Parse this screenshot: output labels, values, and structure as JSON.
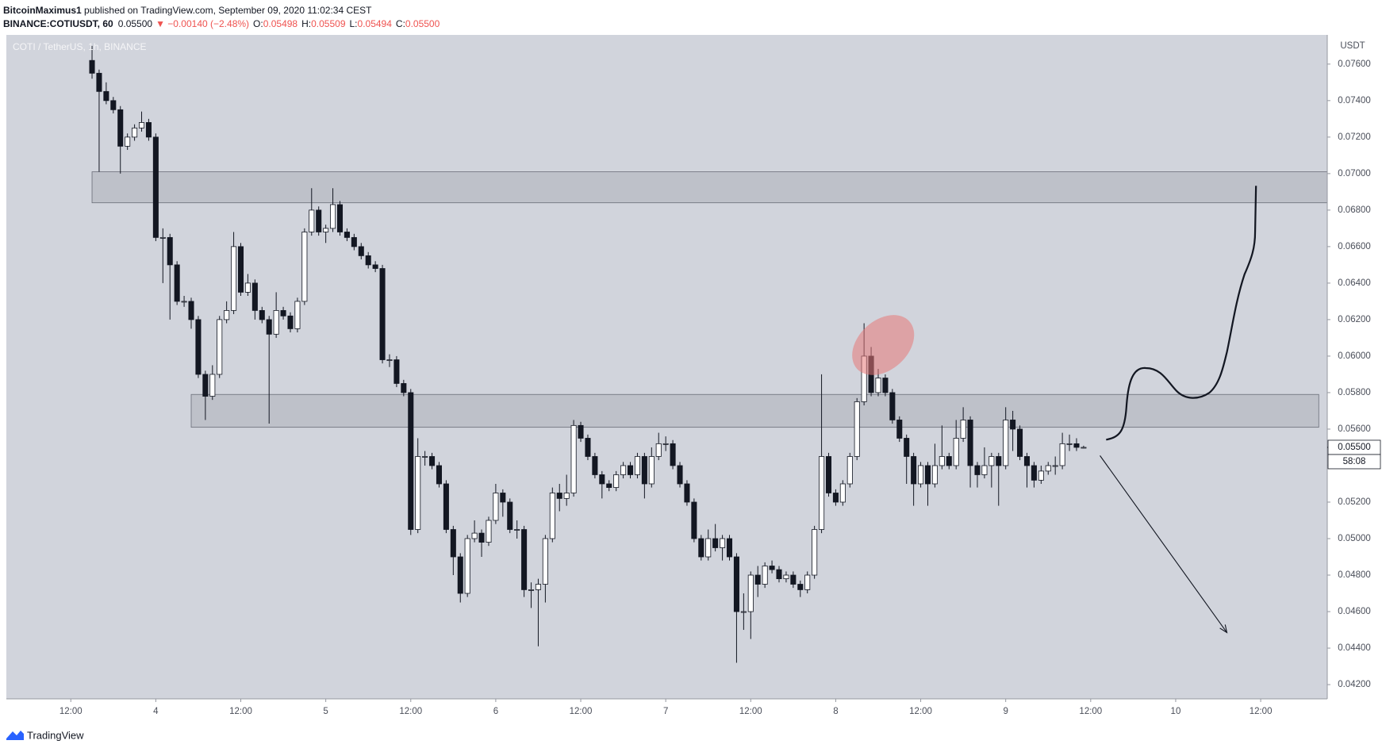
{
  "header": {
    "author": "BitcoinMaximus1",
    "published": " published on TradingView.com, September 09, 2020 11:02:34 CEST",
    "symbol": "BINANCE:COTIUSDT, 60",
    "last": "0.05500",
    "change": "▼ −0.00140 (−2.48%)",
    "ohlc": [
      {
        "label": "O:",
        "value": "0.05498"
      },
      {
        "label": "H:",
        "value": "0.05509"
      },
      {
        "label": "L:",
        "value": "0.05494"
      },
      {
        "label": "C:",
        "value": "0.05500"
      }
    ]
  },
  "chart_data": {
    "type": "candlestick",
    "pane_label": "COTI / TetherUS, 1h, BINANCE",
    "currency": "USDT",
    "price_label": "0.05500",
    "countdown": "58:08",
    "up_color": "#ffffff",
    "down_color": "#131722",
    "border_color": "#131722",
    "xlim": [
      2.9,
      189.4
    ],
    "ylim": [
      0.04122,
      0.0776
    ],
    "xticks": [
      {
        "value": 12,
        "label": "12:00"
      },
      {
        "value": 24,
        "label": "4"
      },
      {
        "value": 36,
        "label": "12:00"
      },
      {
        "value": 48,
        "label": "5"
      },
      {
        "value": 60,
        "label": "12:00"
      },
      {
        "value": 72,
        "label": "6"
      },
      {
        "value": 84,
        "label": "12:00"
      },
      {
        "value": 96,
        "label": "7"
      },
      {
        "value": 108,
        "label": "12:00"
      },
      {
        "value": 120,
        "label": "8"
      },
      {
        "value": 132,
        "label": "12:00"
      },
      {
        "value": 144,
        "label": "9"
      },
      {
        "value": 156,
        "label": "12:00"
      },
      {
        "value": 168,
        "label": "10"
      },
      {
        "value": 180,
        "label": "12:00"
      }
    ],
    "yticks": [
      {
        "value": 0.042,
        "label": "0.04200"
      },
      {
        "value": 0.044,
        "label": "0.04400"
      },
      {
        "value": 0.046,
        "label": "0.04600"
      },
      {
        "value": 0.048,
        "label": "0.04800"
      },
      {
        "value": 0.05,
        "label": "0.05000"
      },
      {
        "value": 0.052,
        "label": "0.05200"
      },
      {
        "value": 0.054,
        "label": "0.05400"
      },
      {
        "value": 0.056,
        "label": "0.05600"
      },
      {
        "value": 0.058,
        "label": "0.05800"
      },
      {
        "value": 0.06,
        "label": "0.06000"
      },
      {
        "value": 0.062,
        "label": "0.06200"
      },
      {
        "value": 0.064,
        "label": "0.06400"
      },
      {
        "value": 0.066,
        "label": "0.06600"
      },
      {
        "value": 0.068,
        "label": "0.06800"
      },
      {
        "value": 0.07,
        "label": "0.07000"
      },
      {
        "value": 0.072,
        "label": "0.07200"
      },
      {
        "value": 0.074,
        "label": "0.07400"
      },
      {
        "value": 0.076,
        "label": "0.07600"
      }
    ],
    "zones": [
      {
        "x": [
          15,
          189.4
        ],
        "y": [
          0.0684,
          0.0701
        ]
      },
      {
        "x": [
          29,
          188.2
        ],
        "y": [
          0.0561,
          0.0579
        ]
      }
    ],
    "x": [
      15,
      16,
      17,
      18,
      19,
      20,
      21,
      22,
      23,
      24,
      25,
      26,
      27,
      28,
      29,
      30,
      31,
      32,
      33,
      34,
      35,
      36,
      37,
      38,
      39,
      40,
      41,
      42,
      43,
      44,
      45,
      46,
      47,
      48,
      49,
      50,
      51,
      52,
      53,
      54,
      55,
      56,
      57,
      58,
      59,
      60,
      61,
      62,
      63,
      64,
      65,
      66,
      67,
      68,
      69,
      70,
      71,
      72,
      73,
      74,
      75,
      76,
      77,
      78,
      79,
      80,
      81,
      82,
      83,
      84,
      85,
      86,
      87,
      88,
      89,
      90,
      91,
      92,
      93,
      94,
      95,
      96,
      97,
      98,
      99,
      100,
      101,
      102,
      103,
      104,
      105,
      106,
      107,
      108,
      109,
      110,
      111,
      112,
      113,
      114,
      115,
      116,
      117,
      118,
      119,
      120,
      121,
      122,
      123,
      124,
      125,
      126,
      127,
      128,
      129,
      130,
      131,
      132,
      133,
      134,
      135,
      136,
      137,
      138,
      139,
      140,
      141,
      142,
      143,
      144,
      145,
      146,
      147,
      148,
      149,
      150,
      151,
      152,
      153,
      154,
      155
    ],
    "open": [
      0.0762,
      0.0755,
      0.0745,
      0.074,
      0.0735,
      0.0715,
      0.072,
      0.0725,
      0.0728,
      0.072,
      0.0665,
      0.0665,
      0.065,
      0.063,
      0.063,
      0.062,
      0.059,
      0.0578,
      0.059,
      0.062,
      0.0625,
      0.066,
      0.0635,
      0.064,
      0.0625,
      0.062,
      0.0612,
      0.0625,
      0.0622,
      0.0615,
      0.063,
      0.0668,
      0.068,
      0.0668,
      0.067,
      0.0683,
      0.0668,
      0.0665,
      0.066,
      0.0655,
      0.065,
      0.0648,
      0.0598,
      0.0598,
      0.0585,
      0.058,
      0.0505,
      0.0545,
      0.0545,
      0.054,
      0.053,
      0.0505,
      0.049,
      0.047,
      0.05,
      0.0503,
      0.0498,
      0.051,
      0.0525,
      0.052,
      0.0505,
      0.0505,
      0.0472,
      0.0472,
      0.0475,
      0.05,
      0.0525,
      0.0522,
      0.0525,
      0.0562,
      0.0555,
      0.0545,
      0.0535,
      0.053,
      0.0528,
      0.0535,
      0.054,
      0.0535,
      0.0545,
      0.053,
      0.0545,
      0.0552,
      0.0552,
      0.054,
      0.053,
      0.052,
      0.05,
      0.049,
      0.05,
      0.0495,
      0.05,
      0.049,
      0.046,
      0.046,
      0.048,
      0.0475,
      0.0485,
      0.0483,
      0.0478,
      0.048,
      0.0475,
      0.0472,
      0.048,
      0.0505,
      0.0545,
      0.0525,
      0.052,
      0.053,
      0.0545,
      0.0575,
      0.06,
      0.058,
      0.0588,
      0.058,
      0.0565,
      0.0555,
      0.0545,
      0.053,
      0.054,
      0.053,
      0.054,
      0.0545,
      0.054,
      0.0555,
      0.0565,
      0.054,
      0.0535,
      0.054,
      0.0545,
      0.054,
      0.0565,
      0.056,
      0.0545,
      0.054,
      0.0532,
      0.0537,
      0.054,
      0.054,
      0.0552,
      0.0552,
      0.05498
    ],
    "high": [
      0.077,
      0.0757,
      0.075,
      0.0742,
      0.0737,
      0.0722,
      0.0727,
      0.0734,
      0.073,
      0.0722,
      0.067,
      0.0667,
      0.0652,
      0.0633,
      0.0632,
      0.0622,
      0.0592,
      0.0595,
      0.0622,
      0.063,
      0.0668,
      0.0662,
      0.0645,
      0.0642,
      0.0627,
      0.0622,
      0.0635,
      0.0627,
      0.0624,
      0.0632,
      0.067,
      0.0692,
      0.0682,
      0.0672,
      0.0692,
      0.0685,
      0.067,
      0.0667,
      0.0662,
      0.0657,
      0.0652,
      0.065,
      0.0601,
      0.06,
      0.0587,
      0.0582,
      0.0555,
      0.0548,
      0.0547,
      0.0542,
      0.0532,
      0.0507,
      0.0492,
      0.0502,
      0.051,
      0.0505,
      0.0512,
      0.053,
      0.0527,
      0.0522,
      0.051,
      0.0507,
      0.0476,
      0.0478,
      0.0502,
      0.0528,
      0.053,
      0.0535,
      0.0565,
      0.0564,
      0.0557,
      0.0547,
      0.0537,
      0.0532,
      0.0537,
      0.0542,
      0.0542,
      0.0547,
      0.0547,
      0.055,
      0.0558,
      0.0556,
      0.0554,
      0.0542,
      0.0532,
      0.0522,
      0.0502,
      0.0505,
      0.0508,
      0.0502,
      0.0502,
      0.0492,
      0.047,
      0.0482,
      0.0485,
      0.0487,
      0.0488,
      0.0485,
      0.0482,
      0.0482,
      0.0477,
      0.0482,
      0.0507,
      0.059,
      0.0547,
      0.0527,
      0.0532,
      0.0547,
      0.0577,
      0.0618,
      0.0605,
      0.0593,
      0.059,
      0.0582,
      0.0567,
      0.0557,
      0.0547,
      0.0542,
      0.0542,
      0.0552,
      0.0562,
      0.0547,
      0.0565,
      0.0572,
      0.0567,
      0.0542,
      0.055,
      0.0547,
      0.0547,
      0.0572,
      0.057,
      0.0562,
      0.0547,
      0.0542,
      0.054,
      0.0542,
      0.0545,
      0.0558,
      0.0557,
      0.0555,
      0.05509
    ],
    "low": [
      0.0752,
      0.0701,
      0.0738,
      0.0733,
      0.07,
      0.0713,
      0.0718,
      0.0723,
      0.0718,
      0.0663,
      0.064,
      0.062,
      0.0628,
      0.0627,
      0.0615,
      0.0588,
      0.0565,
      0.0576,
      0.0588,
      0.0618,
      0.0623,
      0.0633,
      0.0633,
      0.062,
      0.0618,
      0.0563,
      0.061,
      0.062,
      0.0613,
      0.0613,
      0.0628,
      0.0666,
      0.0666,
      0.0662,
      0.0668,
      0.0666,
      0.0663,
      0.0658,
      0.0653,
      0.0648,
      0.0646,
      0.0596,
      0.0594,
      0.0583,
      0.0578,
      0.0502,
      0.0503,
      0.054,
      0.0538,
      0.0528,
      0.0503,
      0.048,
      0.0465,
      0.0468,
      0.0498,
      0.049,
      0.0496,
      0.0508,
      0.0512,
      0.0503,
      0.05,
      0.0468,
      0.0462,
      0.0441,
      0.0465,
      0.0498,
      0.0515,
      0.0518,
      0.0523,
      0.0553,
      0.0543,
      0.0533,
      0.0522,
      0.0526,
      0.0526,
      0.0533,
      0.0533,
      0.0533,
      0.0522,
      0.0528,
      0.0543,
      0.0548,
      0.0538,
      0.0528,
      0.0518,
      0.0498,
      0.0488,
      0.0488,
      0.0493,
      0.0488,
      0.0488,
      0.0432,
      0.045,
      0.0445,
      0.0468,
      0.0473,
      0.0481,
      0.0476,
      0.0476,
      0.0473,
      0.0468,
      0.047,
      0.0478,
      0.0503,
      0.0523,
      0.0518,
      0.0518,
      0.0528,
      0.0543,
      0.0573,
      0.0578,
      0.0578,
      0.0578,
      0.0563,
      0.0553,
      0.053,
      0.0518,
      0.0528,
      0.0518,
      0.0528,
      0.0538,
      0.0538,
      0.0538,
      0.0553,
      0.0528,
      0.0528,
      0.0533,
      0.0528,
      0.0518,
      0.0538,
      0.0548,
      0.0543,
      0.0528,
      0.0528,
      0.053,
      0.0535,
      0.0535,
      0.0538,
      0.0548,
      0.0548,
      0.05494
    ],
    "close": [
      0.0755,
      0.0745,
      0.074,
      0.0735,
      0.0715,
      0.072,
      0.0725,
      0.0728,
      0.072,
      0.0665,
      0.0665,
      0.065,
      0.063,
      0.063,
      0.062,
      0.059,
      0.0578,
      0.059,
      0.062,
      0.0625,
      0.066,
      0.0635,
      0.064,
      0.0625,
      0.062,
      0.0612,
      0.0625,
      0.0622,
      0.0615,
      0.063,
      0.0668,
      0.068,
      0.0668,
      0.067,
      0.0683,
      0.0668,
      0.0665,
      0.066,
      0.0655,
      0.065,
      0.0648,
      0.0598,
      0.0598,
      0.0585,
      0.058,
      0.0505,
      0.0545,
      0.0545,
      0.054,
      0.053,
      0.0505,
      0.049,
      0.047,
      0.05,
      0.0503,
      0.0498,
      0.051,
      0.0525,
      0.052,
      0.0505,
      0.0505,
      0.0472,
      0.0472,
      0.0475,
      0.05,
      0.0525,
      0.0522,
      0.0525,
      0.0562,
      0.0555,
      0.0545,
      0.0535,
      0.053,
      0.0528,
      0.0535,
      0.054,
      0.0535,
      0.0545,
      0.053,
      0.0545,
      0.0552,
      0.0552,
      0.054,
      0.053,
      0.052,
      0.05,
      0.049,
      0.05,
      0.0495,
      0.05,
      0.049,
      0.046,
      0.046,
      0.048,
      0.0475,
      0.0485,
      0.0483,
      0.0478,
      0.048,
      0.0475,
      0.0472,
      0.048,
      0.0505,
      0.0545,
      0.0525,
      0.052,
      0.053,
      0.0545,
      0.0575,
      0.06,
      0.058,
      0.0588,
      0.058,
      0.0565,
      0.0555,
      0.0545,
      0.053,
      0.054,
      0.053,
      0.054,
      0.0545,
      0.054,
      0.0555,
      0.0565,
      0.054,
      0.0535,
      0.054,
      0.0545,
      0.054,
      0.0565,
      0.056,
      0.0545,
      0.054,
      0.0532,
      0.0537,
      0.054,
      0.054,
      0.0552,
      0.0552,
      0.055,
      0.055
    ]
  },
  "footer": {
    "brand": "TradingView"
  }
}
